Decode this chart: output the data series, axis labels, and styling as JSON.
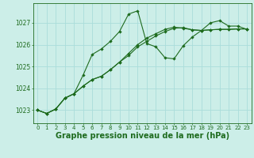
{
  "background_color": "#cceee8",
  "grid_color": "#aaddda",
  "line_color": "#1e6b1e",
  "marker": "D",
  "marker_size": 2.2,
  "linewidth": 0.8,
  "xlabel": "Graphe pression niveau de la mer (hPa)",
  "xlabel_fontsize": 7.0,
  "xtick_fontsize": 5.0,
  "ytick_fontsize": 5.5,
  "xlim": [
    -0.5,
    23.5
  ],
  "ylim": [
    1022.4,
    1027.9
  ],
  "yticks": [
    1023,
    1024,
    1025,
    1026,
    1027
  ],
  "xticks": [
    0,
    1,
    2,
    3,
    4,
    5,
    6,
    7,
    8,
    9,
    10,
    11,
    12,
    13,
    14,
    15,
    16,
    17,
    18,
    19,
    20,
    21,
    22,
    23
  ],
  "line1_x": [
    0,
    1,
    2,
    3,
    4,
    5,
    6,
    7,
    8,
    9,
    10,
    11,
    12,
    13,
    14,
    15,
    16,
    17,
    18,
    19,
    20,
    21,
    22,
    23
  ],
  "line1_y": [
    1023.0,
    1022.85,
    1023.05,
    1023.55,
    1023.75,
    1024.6,
    1025.55,
    1025.8,
    1026.15,
    1026.6,
    1027.4,
    1027.55,
    1026.05,
    1025.9,
    1025.4,
    1025.35,
    1025.95,
    1026.35,
    1026.65,
    1027.0,
    1027.1,
    1026.85,
    1026.85,
    1026.7
  ],
  "line2_x": [
    0,
    1,
    2,
    3,
    4,
    5,
    6,
    7,
    8,
    9,
    10,
    11,
    12,
    13,
    14,
    15,
    16,
    17,
    18,
    19,
    20,
    21,
    22,
    23
  ],
  "line2_y": [
    1023.0,
    1022.85,
    1023.05,
    1023.55,
    1023.75,
    1024.1,
    1024.4,
    1024.55,
    1024.85,
    1025.2,
    1025.6,
    1026.0,
    1026.3,
    1026.5,
    1026.7,
    1026.8,
    1026.75,
    1026.68,
    1026.65,
    1026.68,
    1026.7,
    1026.7,
    1026.72,
    1026.72
  ],
  "line3_x": [
    0,
    1,
    2,
    3,
    4,
    5,
    6,
    7,
    8,
    9,
    10,
    11,
    12,
    13,
    14,
    15,
    16,
    17,
    18,
    19,
    20,
    21,
    22,
    23
  ],
  "line3_y": [
    1023.0,
    1022.85,
    1023.05,
    1023.55,
    1023.75,
    1024.1,
    1024.4,
    1024.55,
    1024.85,
    1025.2,
    1025.5,
    1025.9,
    1026.15,
    1026.4,
    1026.6,
    1026.75,
    1026.78,
    1026.68,
    1026.65,
    1026.68,
    1026.7,
    1026.7,
    1026.72,
    1026.72
  ]
}
